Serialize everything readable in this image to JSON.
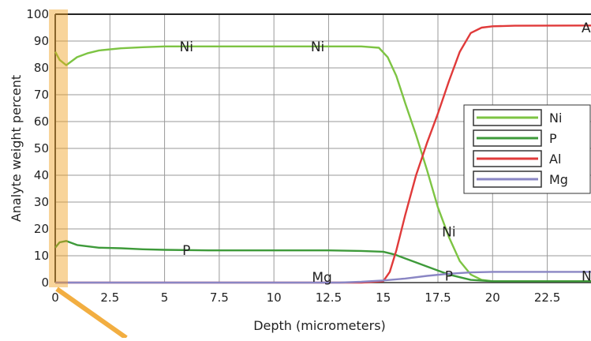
{
  "chart_data": {
    "type": "line",
    "title": "",
    "xlabel": "Depth (micrometers)",
    "ylabel": "Analyte weight percent",
    "xlim": [
      0,
      24.5
    ],
    "ylim": [
      0,
      100
    ],
    "x_ticks": [
      0,
      2.5,
      5,
      7.5,
      10,
      12.5,
      15,
      17.5,
      20,
      22.5
    ],
    "x_tick_labels": [
      "0",
      "2.5",
      "5",
      "7.5",
      "10",
      "12.5",
      "15",
      "17.5",
      "20",
      "22.5"
    ],
    "y_ticks": [
      0,
      10,
      20,
      30,
      40,
      50,
      60,
      70,
      80,
      90,
      100
    ],
    "y_tick_labels": [
      "0",
      "10",
      "20",
      "30",
      "40",
      "50",
      "60",
      "70",
      "80",
      "90",
      "100"
    ],
    "grid": true,
    "legend_position": "right",
    "series": [
      {
        "name": "Ni",
        "color": "#7dc443",
        "x": [
          0,
          0.2,
          0.5,
          1,
          1.5,
          2,
          3,
          4,
          5,
          7,
          10,
          12.5,
          14,
          14.8,
          15.2,
          15.6,
          16,
          16.5,
          17,
          17.5,
          18,
          18.5,
          19,
          19.5,
          20,
          22,
          24.5
        ],
        "y": [
          86,
          83,
          81,
          84,
          85.5,
          86.5,
          87.3,
          87.7,
          88,
          88,
          88,
          88,
          88,
          87.5,
          84,
          77,
          67,
          55,
          42,
          28,
          17,
          8,
          3,
          1,
          0.5,
          0.5,
          0.5
        ]
      },
      {
        "name": "P",
        "color": "#3e9a3a",
        "x": [
          0,
          0.2,
          0.5,
          1,
          2,
          3,
          4,
          5,
          7,
          10,
          12.5,
          14,
          15,
          15.5,
          16,
          16.5,
          17,
          17.5,
          18,
          18.5,
          19,
          20,
          24.5
        ],
        "y": [
          13,
          15,
          15.5,
          14,
          13,
          12.8,
          12.4,
          12.2,
          12,
          12,
          12,
          11.8,
          11.5,
          10.5,
          9,
          7.5,
          6,
          4.5,
          3,
          2,
          1,
          0.5,
          0.5
        ]
      },
      {
        "name": "Al",
        "color": "#e03a3a",
        "x": [
          0,
          14,
          15,
          15.3,
          15.6,
          16,
          16.5,
          17,
          17.5,
          18,
          18.5,
          19,
          19.5,
          20,
          21,
          24.5
        ],
        "y": [
          0,
          0,
          0.5,
          4,
          12,
          25,
          40,
          52,
          63,
          75,
          86,
          93,
          95,
          95.5,
          95.7,
          95.8
        ]
      },
      {
        "name": "Mg",
        "color": "#8a86c4",
        "x": [
          0,
          13,
          14,
          15,
          16,
          17,
          18,
          19,
          20,
          24.5
        ],
        "y": [
          0,
          0,
          0.3,
          0.8,
          1.5,
          2.5,
          3.3,
          3.8,
          4,
          4
        ]
      }
    ],
    "annotations": [
      {
        "text": "Ni",
        "x": 6,
        "y": 88
      },
      {
        "text": "Ni",
        "x": 12,
        "y": 88
      },
      {
        "text": "Ni",
        "x": 18,
        "y": 19
      },
      {
        "text": "P",
        "x": 6,
        "y": 12
      },
      {
        "text": "P",
        "x": 18,
        "y": 2.5
      },
      {
        "text": "Mg",
        "x": 12.2,
        "y": 2
      },
      {
        "text": "Al",
        "x": 24.6,
        "y": 95
      },
      {
        "text": "N",
        "x": 24.6,
        "y": 2.5
      }
    ]
  }
}
